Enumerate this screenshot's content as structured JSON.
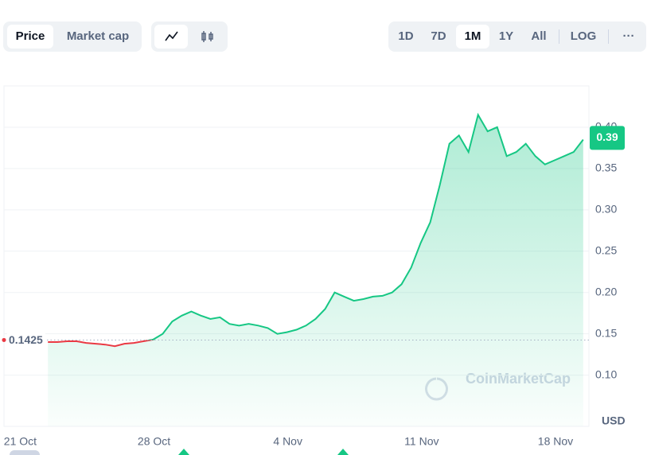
{
  "toolbar": {
    "chart_types": [
      "Price",
      "Market cap"
    ],
    "ranges": [
      "1D",
      "7D",
      "1M",
      "1Y",
      "All"
    ],
    "log": "LOG",
    "more": "···"
  },
  "chart_data": {
    "type": "line",
    "series": [
      {
        "name": "Price",
        "color": "#16c784",
        "below_color": "#ea3943",
        "values": [
          0.14,
          0.14,
          0.141,
          0.141,
          0.139,
          0.138,
          0.137,
          0.135,
          0.138,
          0.139,
          0.141,
          0.143,
          0.15,
          0.165,
          0.172,
          0.177,
          0.172,
          0.168,
          0.17,
          0.162,
          0.16,
          0.162,
          0.16,
          0.157,
          0.15,
          0.152,
          0.155,
          0.16,
          0.168,
          0.18,
          0.2,
          0.195,
          0.19,
          0.192,
          0.195,
          0.196,
          0.2,
          0.21,
          0.23,
          0.26,
          0.285,
          0.33,
          0.38,
          0.39,
          0.37,
          0.415,
          0.395,
          0.4,
          0.365,
          0.37,
          0.38,
          0.365,
          0.355,
          0.36,
          0.365,
          0.37,
          0.385
        ]
      }
    ],
    "xlim": [
      -4.6,
      56.6
    ],
    "xticks": [
      {
        "value": -2.9,
        "label": "21 Oct"
      },
      {
        "value": 11.1,
        "label": "28 Oct"
      },
      {
        "value": 25.1,
        "label": "4 Nov"
      },
      {
        "value": 39.1,
        "label": "11 Nov"
      },
      {
        "value": 53.1,
        "label": "18 Nov"
      }
    ],
    "ylim": [
      0.038,
      0.45
    ],
    "yticks": [
      {
        "value": 0.1,
        "label": "0.10"
      },
      0.15,
      {
        "value": 0.2,
        "label": "0.20"
      },
      0.25,
      {
        "value": 0.3,
        "label": "0.30"
      },
      0.35,
      {
        "value": 0.4,
        "label": "0.40"
      }
    ],
    "grid": true,
    "reference_value": 0.1425,
    "current_price": 0.39,
    "currency": "USD",
    "watermark": "CoinMarketCap"
  }
}
